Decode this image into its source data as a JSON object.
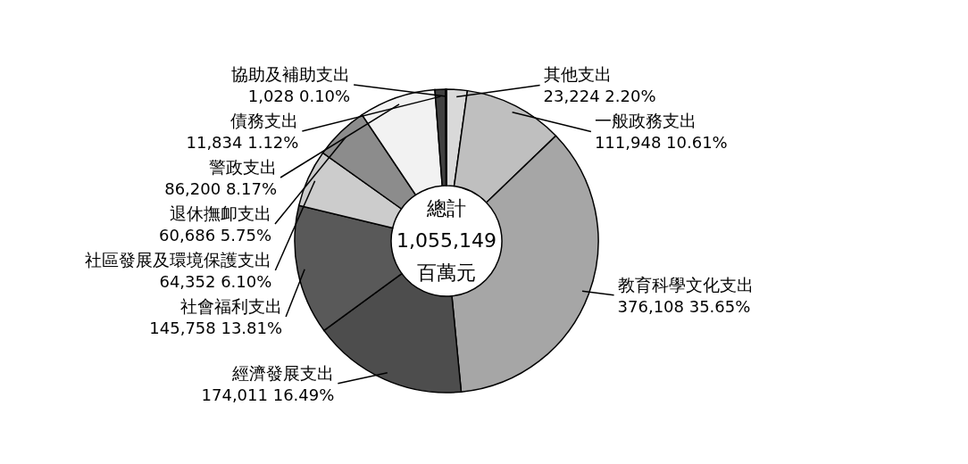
{
  "chart_data": {
    "type": "donut",
    "categories": [
      "其他支出",
      "一般政務支出",
      "教育科學文化支出",
      "經濟發展支出",
      "社會福利支出",
      "社區發展及環境保護支出",
      "退休撫卹支出",
      "警政支出",
      "債務支出",
      "協助及補助支出"
    ],
    "values": [
      23224,
      111948,
      376108,
      174011,
      145758,
      64352,
      60686,
      86200,
      11834,
      1028
    ],
    "value_labels": [
      "23,224  2.20%",
      "111,948  10.61%",
      "376,108  35.65%",
      "174,011  16.49%",
      "145,758  13.81%",
      "64,352  6.10%",
      "60,686  5.75%",
      "86,200  8.17%",
      "11,834  1.12%",
      "1,028  0.10%"
    ],
    "colors": [
      "#d9d9d9",
      "#bfbfbf",
      "#a6a6a6",
      "#4d4d4d",
      "#595959",
      "#cccccc",
      "#8c8c8c",
      "#f2f2f2",
      "#404040",
      "#262626"
    ],
    "annotations": [
      "總計",
      "1,055,149",
      "百萬元"
    ]
  }
}
